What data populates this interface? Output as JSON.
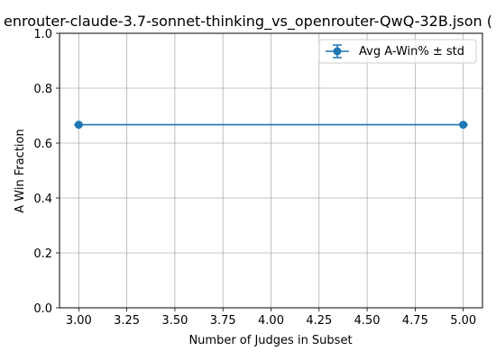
{
  "chart_data": {
    "type": "line",
    "title": "enrouter-claude-3.7-sonnet-thinking_vs_openrouter-QwQ-32B.json (",
    "xlabel": "Number of Judges in Subset",
    "ylabel": "A Win Fraction",
    "xlim": [
      2.9,
      5.1
    ],
    "ylim": [
      0.0,
      1.0
    ],
    "xticks": [
      3.0,
      3.25,
      3.5,
      3.75,
      4.0,
      4.25,
      4.5,
      4.75,
      5.0
    ],
    "xtick_labels": [
      "3.00",
      "3.25",
      "3.50",
      "3.75",
      "4.00",
      "4.25",
      "4.50",
      "4.75",
      "5.00"
    ],
    "yticks": [
      0.0,
      0.2,
      0.4,
      0.6,
      0.8,
      1.0
    ],
    "ytick_labels": [
      "0.0",
      "0.2",
      "0.4",
      "0.6",
      "0.8",
      "1.0"
    ],
    "grid": true,
    "legend_position": "top-right",
    "series": [
      {
        "name": "Avg A-Win% ± std",
        "color": "#1f77b4",
        "marker": "circle",
        "error_bars": true,
        "x": [
          3.0,
          5.0
        ],
        "y": [
          0.667,
          0.667
        ],
        "std": [
          0.0,
          0.0
        ]
      }
    ]
  }
}
